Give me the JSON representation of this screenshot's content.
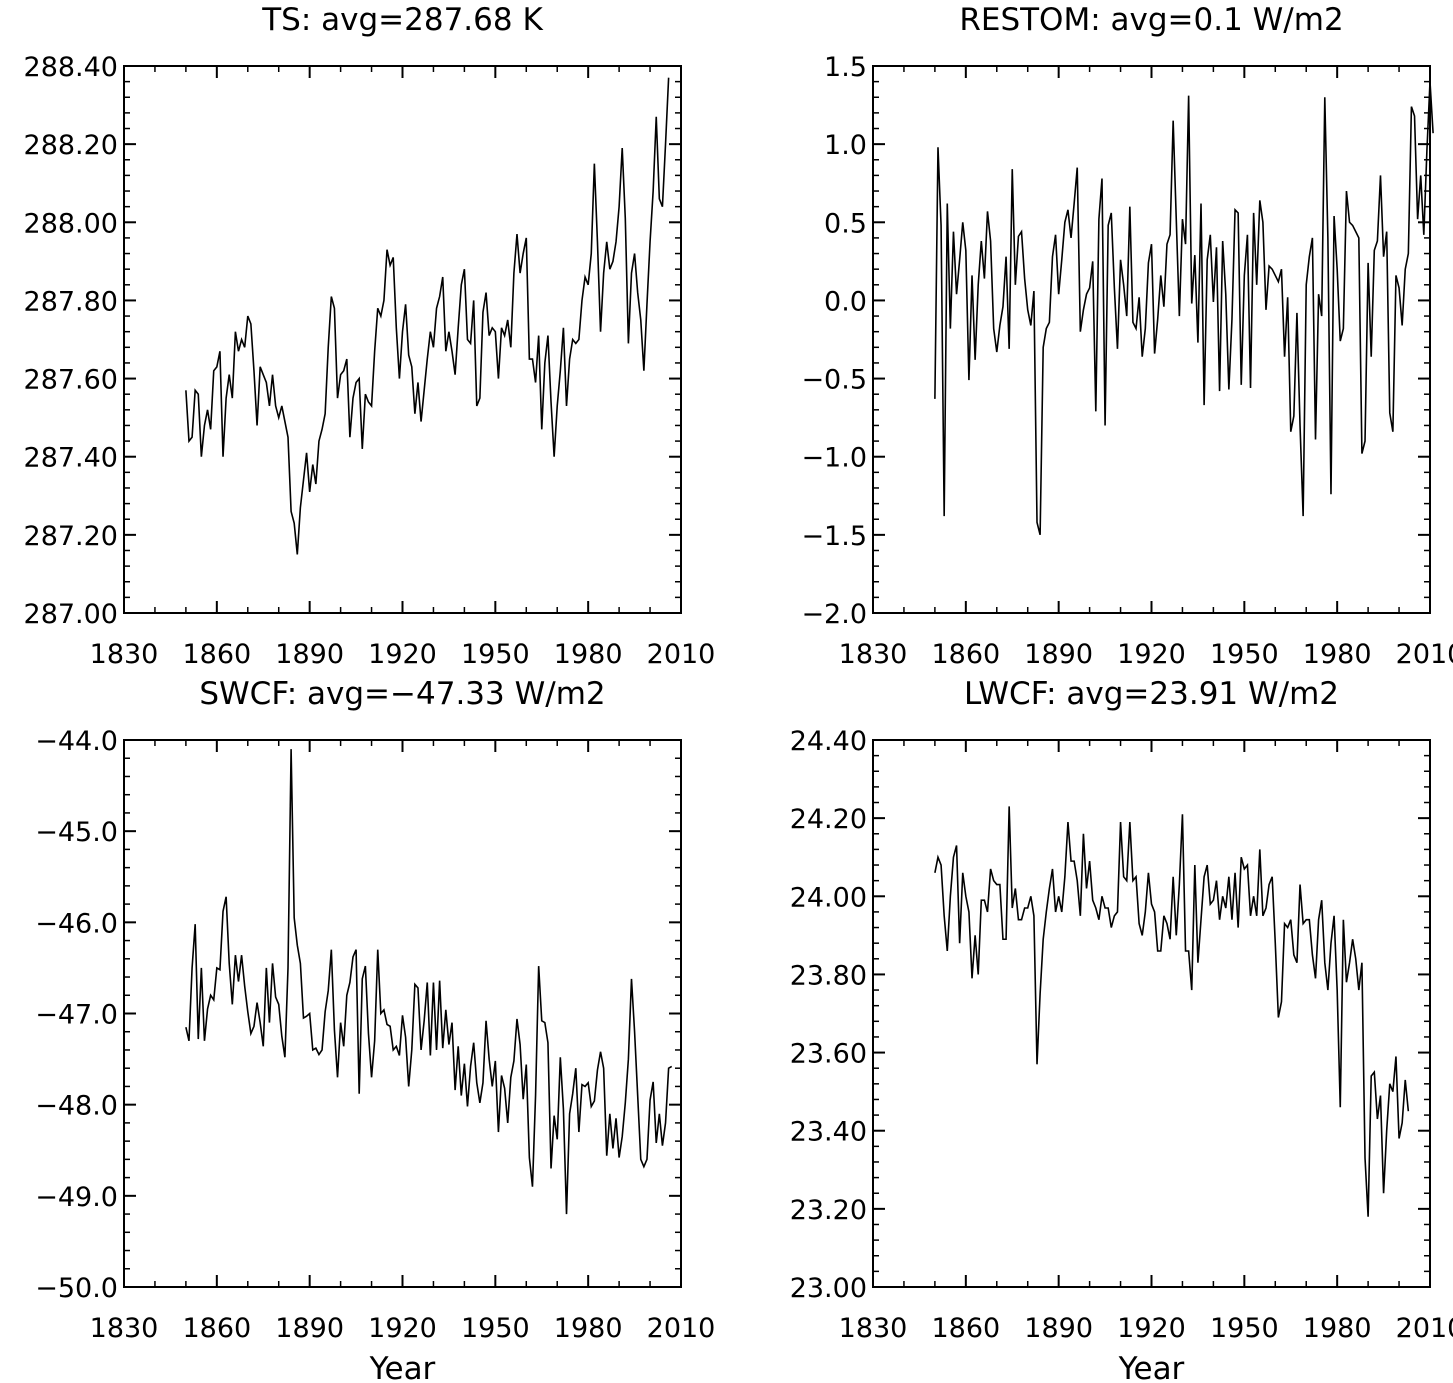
{
  "chart_data": [
    {
      "type": "line",
      "title": "TS: avg=287.68 K",
      "xlabel": "",
      "ylabel": "",
      "xlim": [
        1830,
        2010
      ],
      "ylim": [
        287.0,
        288.4
      ],
      "xticks": [
        1830,
        1860,
        1890,
        1920,
        1950,
        1980,
        2010
      ],
      "yticks": [
        287.0,
        287.2,
        287.4,
        287.6,
        287.8,
        288.0,
        288.2,
        288.4
      ],
      "ytick_labels": [
        "287.00",
        "287.20",
        "287.40",
        "287.60",
        "287.80",
        "288.00",
        "288.20",
        "288.40"
      ],
      "grid": false,
      "x_start": 1850,
      "series": [
        {
          "values": [
            287.57,
            287.44,
            287.45,
            287.57,
            287.56,
            287.4,
            287.48,
            287.52,
            287.47,
            287.62,
            287.63,
            287.67,
            287.4,
            287.55,
            287.61,
            287.55,
            287.72,
            287.67,
            287.7,
            287.68,
            287.76,
            287.74,
            287.62,
            287.48,
            287.63,
            287.61,
            287.59,
            287.53,
            287.61,
            287.53,
            287.5,
            287.53,
            287.49,
            287.45,
            287.26,
            287.23,
            287.15,
            287.27,
            287.34,
            287.41,
            287.31,
            287.38,
            287.33,
            287.44,
            287.47,
            287.51,
            287.68,
            287.81,
            287.78,
            287.55,
            287.61,
            287.62,
            287.65,
            287.45,
            287.55,
            287.59,
            287.6,
            287.42,
            287.56,
            287.54,
            287.53,
            287.67,
            287.78,
            287.76,
            287.8,
            287.93,
            287.89,
            287.91,
            287.73,
            287.6,
            287.72,
            287.79,
            287.66,
            287.63,
            287.51,
            287.59,
            287.49,
            287.57,
            287.65,
            287.72,
            287.68,
            287.78,
            287.81,
            287.86,
            287.67,
            287.72,
            287.67,
            287.61,
            287.73,
            287.84,
            287.88,
            287.7,
            287.69,
            287.8,
            287.53,
            287.55,
            287.77,
            287.82,
            287.71,
            287.73,
            287.72,
            287.6,
            287.73,
            287.71,
            287.75,
            287.68,
            287.87,
            287.97,
            287.87,
            287.92,
            287.96,
            287.65,
            287.65,
            287.59,
            287.71,
            287.47,
            287.64,
            287.71,
            287.54,
            287.4,
            287.53,
            287.62,
            287.73,
            287.53,
            287.65,
            287.7,
            287.69,
            287.7,
            287.8,
            287.86,
            287.84,
            287.92,
            288.15,
            287.95,
            287.72,
            287.87,
            287.95,
            287.88,
            287.9,
            287.95,
            288.04,
            288.19,
            288.01,
            287.69,
            287.87,
            287.92,
            287.82,
            287.75,
            287.62,
            287.79,
            287.95,
            288.08,
            288.27,
            288.06,
            288.04,
            288.2,
            288.37
          ]
        }
      ]
    },
    {
      "type": "line",
      "title": "RESTOM: avg=0.1 W/m2",
      "xlabel": "",
      "ylabel": "",
      "xlim": [
        1830,
        2010
      ],
      "ylim": [
        -2.0,
        1.5
      ],
      "xticks": [
        1830,
        1860,
        1890,
        1920,
        1950,
        1980,
        2010
      ],
      "yticks": [
        -2.0,
        -1.5,
        -1.0,
        -0.5,
        0.0,
        0.5,
        1.0,
        1.5
      ],
      "ytick_labels": [
        "−2.0",
        "−1.5",
        "−1.0",
        "−0.5",
        "0.0",
        "0.5",
        "1.0",
        "1.5"
      ],
      "grid": false,
      "x_start": 1850,
      "series": [
        {
          "values": [
            -0.63,
            0.98,
            0.48,
            -1.38,
            0.62,
            -0.18,
            0.44,
            0.04,
            0.26,
            0.5,
            0.32,
            -0.51,
            0.16,
            -0.38,
            0.1,
            0.38,
            0.14,
            0.57,
            0.38,
            -0.18,
            -0.33,
            -0.16,
            -0.04,
            0.28,
            -0.31,
            0.84,
            0.1,
            0.41,
            0.44,
            0.14,
            -0.06,
            -0.16,
            0.06,
            -1.42,
            -1.5,
            -0.3,
            -0.18,
            -0.14,
            0.28,
            0.42,
            0.04,
            0.26,
            0.5,
            0.58,
            0.4,
            0.62,
            0.85,
            -0.2,
            -0.06,
            0.04,
            0.08,
            0.25,
            -0.71,
            0.52,
            0.78,
            -0.8,
            0.48,
            0.56,
            0.08,
            -0.31,
            0.26,
            0.1,
            -0.1,
            0.6,
            -0.14,
            -0.18,
            0.02,
            -0.36,
            -0.18,
            0.24,
            0.36,
            -0.34,
            -0.12,
            0.16,
            -0.04,
            0.36,
            0.42,
            1.15,
            0.52,
            -0.1,
            0.52,
            0.36,
            1.31,
            -0.02,
            0.29,
            -0.27,
            0.62,
            -0.67,
            0.26,
            0.42,
            -0.01,
            0.34,
            -0.58,
            0.38,
            0.04,
            -0.57,
            -0.12,
            0.58,
            0.56,
            -0.54,
            0.16,
            0.42,
            -0.56,
            0.56,
            0.1,
            0.64,
            0.5,
            -0.06,
            0.22,
            0.2,
            0.16,
            0.12,
            0.2,
            -0.36,
            0.02,
            -0.84,
            -0.74,
            -0.08,
            -0.8,
            -1.38,
            0.1,
            0.28,
            0.4,
            -0.89,
            0.04,
            -0.1,
            1.3,
            0.4,
            -1.24,
            0.54,
            0.2,
            -0.26,
            -0.18,
            0.7,
            0.5,
            0.48,
            0.44,
            0.4,
            -0.98,
            -0.9,
            0.24,
            -0.36,
            0.32,
            0.38,
            0.8,
            0.28,
            0.44,
            -0.72,
            -0.84,
            0.16,
            0.08,
            -0.16,
            0.2,
            0.3,
            1.24,
            1.18,
            0.52,
            0.8,
            0.42,
            0.96,
            1.4,
            1.07
          ]
        }
      ]
    },
    {
      "type": "line",
      "title": "SWCF: avg=−47.33 W/m2",
      "xlabel": "Year",
      "ylabel": "",
      "xlim": [
        1830,
        2010
      ],
      "ylim": [
        -50.0,
        -44.0
      ],
      "xticks": [
        1830,
        1860,
        1890,
        1920,
        1950,
        1980,
        2010
      ],
      "yticks": [
        -50.0,
        -49.0,
        -48.0,
        -47.0,
        -46.0,
        -45.0,
        -44.0
      ],
      "ytick_labels": [
        "−50.0",
        "−49.0",
        "−48.0",
        "−47.0",
        "−46.0",
        "−45.0",
        "−44.0"
      ],
      "grid": false,
      "x_start": 1850,
      "series": [
        {
          "values": [
            -47.15,
            -47.3,
            -46.5,
            -46.02,
            -47.28,
            -46.5,
            -47.3,
            -46.95,
            -46.8,
            -46.85,
            -46.5,
            -46.52,
            -45.88,
            -45.72,
            -46.45,
            -46.9,
            -46.36,
            -46.65,
            -46.36,
            -46.7,
            -46.98,
            -47.22,
            -47.14,
            -46.88,
            -47.1,
            -47.36,
            -46.5,
            -47.1,
            -46.45,
            -46.82,
            -46.9,
            -47.25,
            -47.48,
            -46.5,
            -44.1,
            -45.95,
            -46.25,
            -46.45,
            -47.05,
            -47.03,
            -47.0,
            -47.4,
            -47.38,
            -47.45,
            -47.4,
            -46.98,
            -46.75,
            -46.3,
            -47.18,
            -47.7,
            -47.1,
            -47.36,
            -46.8,
            -46.66,
            -46.38,
            -46.3,
            -47.88,
            -46.62,
            -46.48,
            -47.22,
            -47.7,
            -47.3,
            -46.3,
            -47.0,
            -46.96,
            -47.12,
            -47.14,
            -47.4,
            -47.36,
            -47.46,
            -47.02,
            -47.26,
            -47.8,
            -47.4,
            -46.68,
            -46.72,
            -47.4,
            -47.08,
            -46.66,
            -47.46,
            -46.66,
            -47.4,
            -46.64,
            -47.38,
            -46.96,
            -47.34,
            -47.1,
            -47.84,
            -47.36,
            -47.9,
            -47.55,
            -48.02,
            -47.58,
            -47.32,
            -47.76,
            -47.98,
            -47.76,
            -47.08,
            -47.5,
            -47.8,
            -47.52,
            -48.3,
            -47.68,
            -47.82,
            -48.2,
            -47.7,
            -47.52,
            -47.06,
            -47.34,
            -47.94,
            -47.56,
            -48.58,
            -48.9,
            -47.9,
            -46.48,
            -47.08,
            -47.1,
            -47.32,
            -48.7,
            -48.12,
            -48.38,
            -47.48,
            -48.05,
            -49.2,
            -48.1,
            -47.88,
            -47.6,
            -48.3,
            -47.78,
            -47.8,
            -47.76,
            -48.02,
            -47.96,
            -47.62,
            -47.42,
            -47.6,
            -48.56,
            -48.1,
            -48.48,
            -48.15,
            -48.58,
            -48.35,
            -47.98,
            -47.5,
            -46.62,
            -47.2,
            -47.9,
            -48.6,
            -48.68,
            -48.6,
            -47.95,
            -47.75,
            -48.42,
            -48.1,
            -48.45,
            -48.2,
            -47.6,
            -47.58
          ]
        }
      ]
    },
    {
      "type": "line",
      "title": "LWCF: avg=23.91 W/m2",
      "xlabel": "Year",
      "ylabel": "",
      "xlim": [
        1830,
        2010
      ],
      "ylim": [
        23.0,
        24.4
      ],
      "xticks": [
        1830,
        1860,
        1890,
        1920,
        1950,
        1980,
        2010
      ],
      "yticks": [
        23.0,
        23.2,
        23.4,
        23.6,
        23.8,
        24.0,
        24.2,
        24.4
      ],
      "ytick_labels": [
        "23.00",
        "23.20",
        "23.40",
        "23.60",
        "23.80",
        "24.00",
        "24.20",
        "24.40"
      ],
      "grid": false,
      "x_start": 1850,
      "series": [
        {
          "values": [
            24.06,
            24.1,
            24.08,
            23.95,
            23.86,
            24.0,
            24.1,
            24.13,
            23.88,
            24.06,
            24.0,
            23.96,
            23.79,
            23.9,
            23.8,
            23.99,
            23.99,
            23.96,
            24.07,
            24.04,
            24.03,
            24.03,
            23.89,
            23.89,
            24.23,
            23.97,
            24.02,
            23.94,
            23.94,
            23.97,
            23.97,
            24.0,
            23.95,
            23.57,
            23.75,
            23.89,
            23.96,
            24.02,
            24.07,
            23.96,
            24.0,
            23.96,
            24.05,
            24.19,
            24.09,
            24.09,
            24.04,
            23.95,
            24.16,
            24.02,
            24.09,
            23.99,
            23.97,
            23.94,
            24.0,
            23.97,
            23.97,
            23.92,
            23.95,
            23.96,
            24.19,
            24.05,
            24.04,
            24.19,
            24.04,
            24.05,
            23.93,
            23.9,
            23.96,
            24.06,
            23.98,
            23.96,
            23.86,
            23.86,
            23.95,
            23.93,
            23.89,
            24.05,
            23.9,
            24.03,
            24.21,
            23.86,
            23.86,
            23.76,
            24.08,
            23.83,
            23.94,
            24.05,
            24.08,
            23.98,
            23.99,
            24.04,
            23.94,
            24.0,
            23.97,
            24.05,
            23.94,
            24.06,
            23.92,
            24.1,
            24.07,
            24.08,
            23.95,
            24.0,
            23.95,
            24.12,
            23.95,
            23.97,
            24.03,
            24.05,
            23.88,
            23.69,
            23.73,
            23.93,
            23.92,
            23.94,
            23.85,
            23.83,
            24.03,
            23.93,
            23.94,
            23.94,
            23.85,
            23.79,
            23.94,
            23.99,
            23.83,
            23.76,
            23.88,
            23.95,
            23.76,
            23.46,
            23.94,
            23.78,
            23.83,
            23.89,
            23.84,
            23.76,
            23.83,
            23.33,
            23.18,
            23.54,
            23.55,
            23.43,
            23.49,
            23.24,
            23.4,
            23.52,
            23.5,
            23.59,
            23.38,
            23.42,
            23.53,
            23.45
          ]
        }
      ]
    }
  ]
}
